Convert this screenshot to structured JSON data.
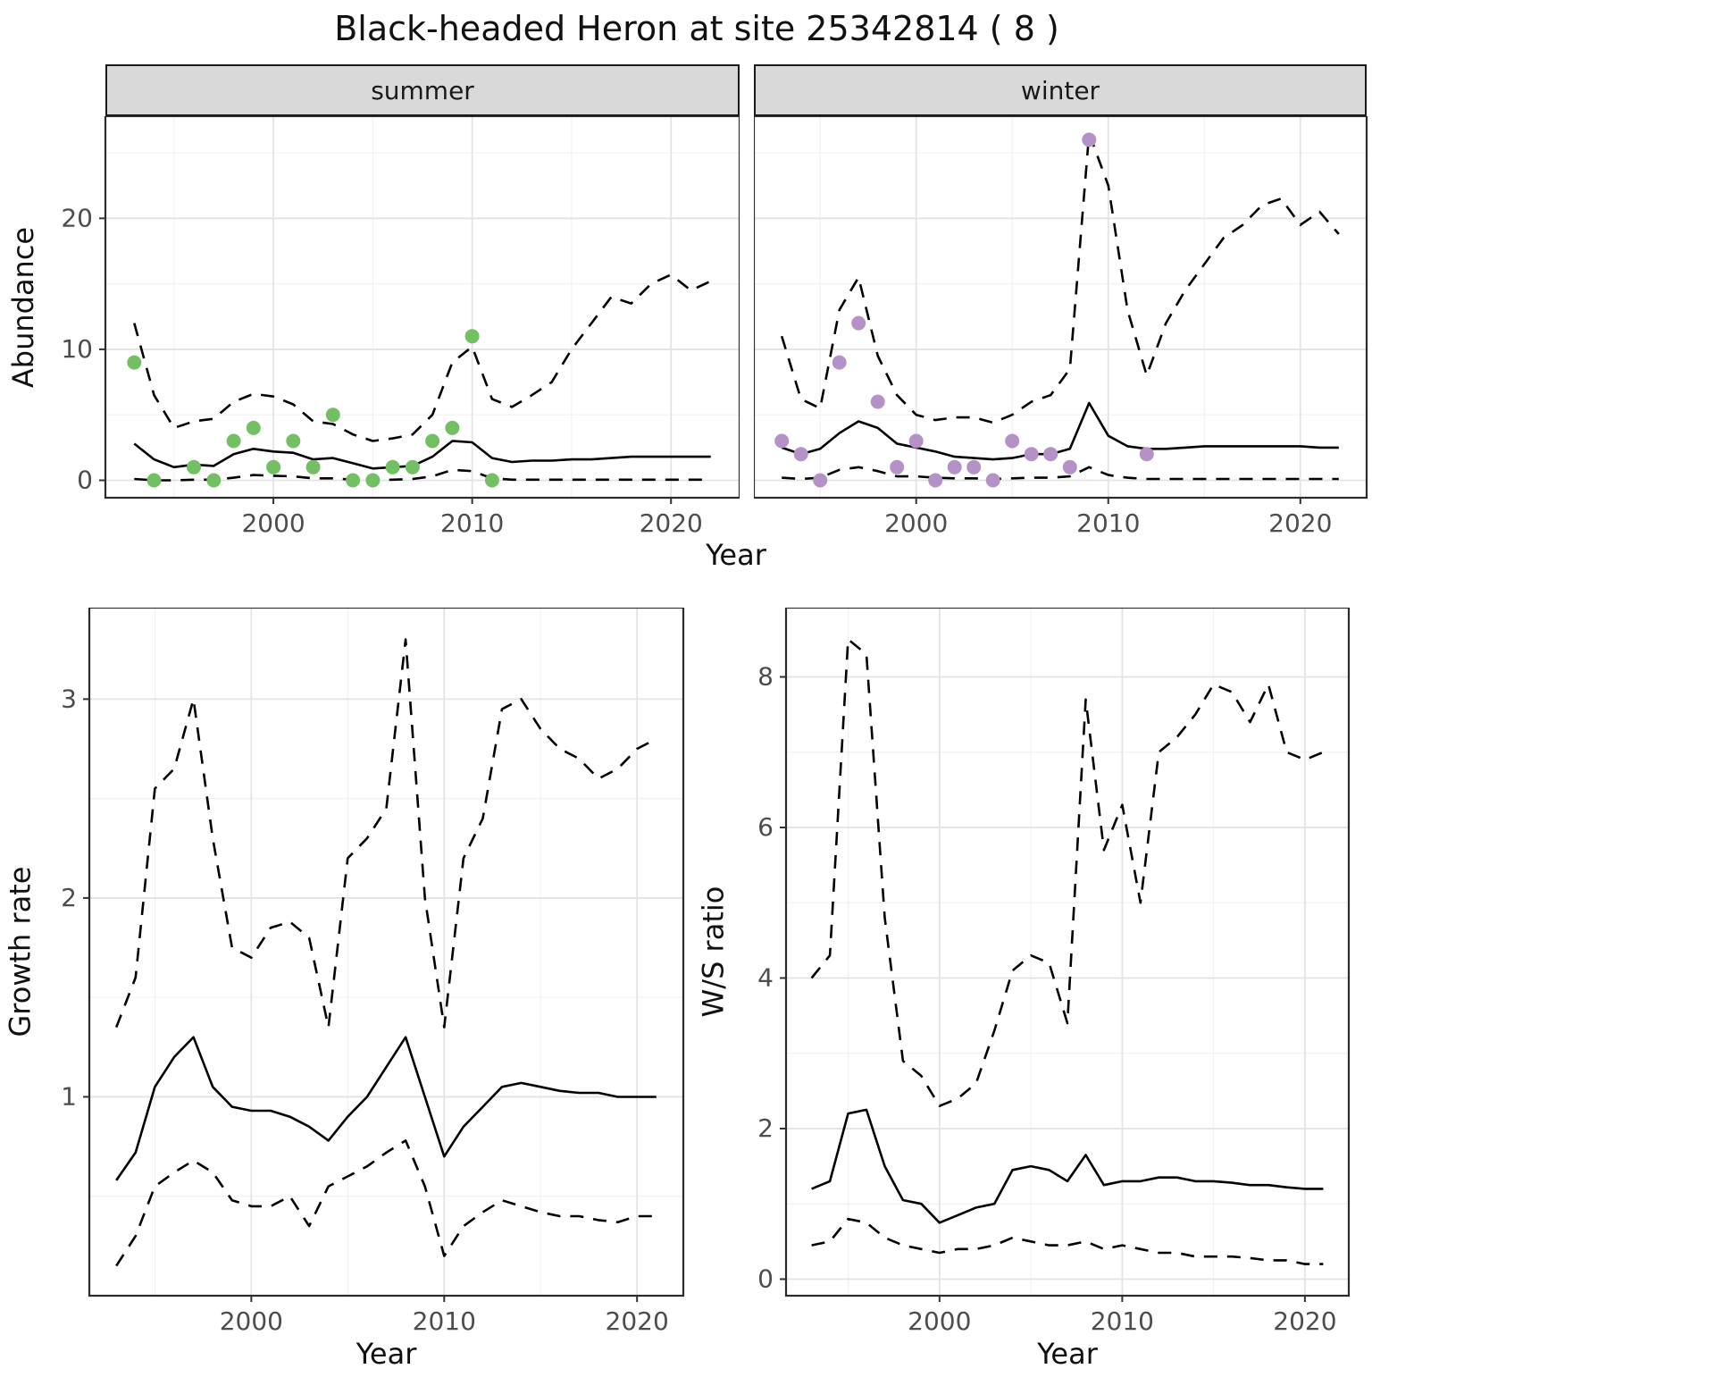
{
  "title": "Black-headed Heron at site 25342814 ( 8 )",
  "top": {
    "x_label": "Year",
    "y_label": "Abundance",
    "facets": [
      "summer",
      "winter"
    ]
  },
  "bottom_left": {
    "x_label": "Year",
    "y_label": "Growth rate"
  },
  "bottom_right": {
    "x_label": "Year",
    "y_label": "W/S ratio"
  },
  "colors": {
    "summer_point": "#73bf63",
    "winter_point": "#b492c8",
    "line": "#000000",
    "panel_background": "#ffffff",
    "grid_major": "#e3e3e3",
    "grid_minor": "#f1f1f1",
    "panel_border": "#2b2b2b",
    "strip_background": "#d9d9d9",
    "tick_label": "#4d4d4d",
    "tick_mark": "#333333"
  },
  "chart_data": [
    {
      "id": "abundance-summer",
      "name": "Abundance (summer facet)",
      "type": "line",
      "xlabel": "Year",
      "ylabel": "Abundance",
      "xlim": [
        1991.55,
        2023.45
      ],
      "ylim": [
        -1.33,
        27.8
      ],
      "xticks": [
        2000,
        2010,
        2020
      ],
      "yticks": [
        0,
        10,
        20
      ],
      "show_y_axis": true,
      "x": [
        1993,
        1994,
        1995,
        1996,
        1997,
        1998,
        1999,
        2000,
        2001,
        2002,
        2003,
        2004,
        2005,
        2006,
        2007,
        2008,
        2009,
        2010,
        2011,
        2012,
        2013,
        2014,
        2015,
        2016,
        2017,
        2018,
        2019,
        2020,
        2021,
        2022
      ],
      "series": [
        {
          "name": "median",
          "style": "solid",
          "values": [
            2.8,
            1.6,
            1.0,
            1.2,
            1.1,
            2.0,
            2.4,
            2.2,
            2.1,
            1.6,
            1.7,
            1.3,
            0.9,
            1.0,
            1.1,
            1.8,
            3.0,
            2.9,
            1.7,
            1.4,
            1.5,
            1.5,
            1.6,
            1.6,
            1.7,
            1.8,
            1.8,
            1.8,
            1.8,
            1.8
          ]
        },
        {
          "name": "upper",
          "style": "dashed",
          "values": [
            12,
            6.5,
            4.0,
            4.5,
            4.7,
            6.0,
            6.6,
            6.4,
            5.8,
            4.5,
            4.3,
            3.5,
            3.0,
            3.2,
            3.5,
            5.0,
            9.0,
            10.2,
            6.2,
            5.6,
            6.5,
            7.5,
            10.0,
            12.0,
            14.0,
            13.5,
            15.0,
            15.7,
            14.5,
            15.2
          ]
        },
        {
          "name": "lower",
          "style": "dashed",
          "values": [
            0.1,
            0.0,
            0.0,
            0.05,
            0.05,
            0.2,
            0.4,
            0.35,
            0.3,
            0.15,
            0.15,
            0.05,
            0.0,
            0.05,
            0.1,
            0.3,
            0.8,
            0.7,
            0.15,
            0.05,
            0.05,
            0.05,
            0.05,
            0.05,
            0.05,
            0.05,
            0.05,
            0.05,
            0.05,
            0.05
          ]
        }
      ],
      "points": {
        "color": "#73bf63",
        "x": [
          1993,
          1994,
          1996,
          1997,
          1998,
          1999,
          2000,
          2001,
          2002,
          2003,
          2004,
          2005,
          2006,
          2007,
          2008,
          2009,
          2010,
          2011
        ],
        "y": [
          9,
          0,
          1,
          0,
          3,
          4,
          1,
          3,
          1,
          5,
          0,
          0,
          1,
          1,
          3,
          4,
          11,
          0
        ]
      }
    },
    {
      "id": "abundance-winter",
      "name": "Abundance (winter facet)",
      "type": "line",
      "xlabel": "Year",
      "ylabel": "Abundance",
      "xlim": [
        1991.55,
        2023.45
      ],
      "ylim": [
        -1.33,
        27.8
      ],
      "xticks": [
        2000,
        2010,
        2020
      ],
      "yticks": [
        0,
        10,
        20
      ],
      "show_y_axis": false,
      "x": [
        1993,
        1994,
        1995,
        1996,
        1997,
        1998,
        1999,
        2000,
        2001,
        2002,
        2003,
        2004,
        2005,
        2006,
        2007,
        2008,
        2009,
        2010,
        2011,
        2012,
        2013,
        2014,
        2015,
        2016,
        2017,
        2018,
        2019,
        2020,
        2021,
        2022
      ],
      "series": [
        {
          "name": "median",
          "style": "solid",
          "values": [
            2.5,
            2.0,
            2.4,
            3.6,
            4.5,
            4.0,
            2.8,
            2.5,
            2.2,
            1.8,
            1.7,
            1.6,
            1.7,
            2.0,
            2.0,
            2.4,
            5.9,
            3.4,
            2.6,
            2.4,
            2.4,
            2.5,
            2.6,
            2.6,
            2.6,
            2.6,
            2.6,
            2.6,
            2.5,
            2.5
          ]
        },
        {
          "name": "upper",
          "style": "dashed",
          "values": [
            11,
            6.2,
            5.5,
            13,
            15.5,
            9.5,
            6.5,
            5.0,
            4.6,
            4.8,
            4.8,
            4.4,
            5.0,
            6.0,
            6.5,
            8.5,
            26.5,
            22.5,
            13,
            8.0,
            12,
            14.5,
            16.5,
            18.5,
            19.5,
            21,
            21.5,
            19.5,
            20.5,
            18.8
          ]
        },
        {
          "name": "lower",
          "style": "dashed",
          "values": [
            0.2,
            0.1,
            0.2,
            0.8,
            1.0,
            0.7,
            0.3,
            0.3,
            0.2,
            0.15,
            0.15,
            0.1,
            0.15,
            0.2,
            0.2,
            0.3,
            1.0,
            0.4,
            0.2,
            0.1,
            0.1,
            0.1,
            0.1,
            0.1,
            0.1,
            0.1,
            0.1,
            0.1,
            0.1,
            0.1
          ]
        }
      ],
      "points": {
        "color": "#b492c8",
        "x": [
          1993,
          1994,
          1995,
          1996,
          1997,
          1998,
          1999,
          2000,
          2001,
          2002,
          2003,
          2004,
          2005,
          2006,
          2007,
          2008,
          2009,
          2012
        ],
        "y": [
          3,
          2,
          0,
          9,
          12,
          6,
          1,
          3,
          0,
          1,
          1,
          0,
          3,
          2,
          2,
          1,
          26,
          2
        ]
      }
    },
    {
      "id": "growth-rate",
      "name": "Growth rate",
      "type": "line",
      "xlabel": "Year",
      "ylabel": "Growth rate",
      "xlim": [
        1991.6,
        2022.4
      ],
      "ylim": [
        0.0,
        3.46
      ],
      "xticks": [
        2000,
        2010,
        2020
      ],
      "yticks": [
        1,
        2,
        3
      ],
      "show_y_axis": true,
      "x": [
        1993,
        1994,
        1995,
        1996,
        1997,
        1998,
        1999,
        2000,
        2001,
        2002,
        2003,
        2004,
        2005,
        2006,
        2007,
        2008,
        2009,
        2010,
        2011,
        2012,
        2013,
        2014,
        2015,
        2016,
        2017,
        2018,
        2019,
        2020,
        2021
      ],
      "series": [
        {
          "name": "median",
          "style": "solid",
          "values": [
            0.58,
            0.72,
            1.05,
            1.2,
            1.3,
            1.05,
            0.95,
            0.93,
            0.93,
            0.9,
            0.85,
            0.78,
            0.9,
            1.0,
            1.15,
            1.3,
            1.0,
            0.7,
            0.85,
            0.95,
            1.05,
            1.07,
            1.05,
            1.03,
            1.02,
            1.02,
            1.0,
            1.0,
            1.0
          ]
        },
        {
          "name": "upper",
          "style": "dashed",
          "values": [
            1.35,
            1.6,
            2.55,
            2.65,
            3.0,
            2.3,
            1.75,
            1.7,
            1.85,
            1.88,
            1.8,
            1.35,
            2.2,
            2.3,
            2.45,
            3.3,
            2.0,
            1.35,
            2.2,
            2.4,
            2.95,
            3.0,
            2.85,
            2.75,
            2.7,
            2.6,
            2.65,
            2.75,
            2.8
          ]
        },
        {
          "name": "lower",
          "style": "dashed",
          "values": [
            0.15,
            0.3,
            0.55,
            0.62,
            0.68,
            0.62,
            0.48,
            0.45,
            0.45,
            0.5,
            0.35,
            0.55,
            0.6,
            0.65,
            0.72,
            0.78,
            0.55,
            0.2,
            0.35,
            0.42,
            0.48,
            0.45,
            0.42,
            0.4,
            0.4,
            0.38,
            0.37,
            0.4,
            0.4
          ]
        }
      ],
      "points": null
    },
    {
      "id": "ws-ratio",
      "name": "W/S ratio",
      "type": "line",
      "xlabel": "Year",
      "ylabel": "W/S ratio",
      "xlim": [
        1991.6,
        2022.4
      ],
      "ylim": [
        -0.22,
        8.92
      ],
      "xticks": [
        2000,
        2010,
        2020
      ],
      "yticks": [
        0,
        2,
        4,
        6,
        8
      ],
      "show_y_axis": true,
      "x": [
        1993,
        1994,
        1995,
        1996,
        1997,
        1998,
        1999,
        2000,
        2001,
        2002,
        2003,
        2004,
        2005,
        2006,
        2007,
        2008,
        2009,
        2010,
        2011,
        2012,
        2013,
        2014,
        2015,
        2016,
        2017,
        2018,
        2019,
        2020,
        2021
      ],
      "series": [
        {
          "name": "median",
          "style": "solid",
          "values": [
            1.2,
            1.3,
            2.2,
            2.25,
            1.5,
            1.05,
            1.0,
            0.75,
            0.85,
            0.95,
            1.0,
            1.45,
            1.5,
            1.45,
            1.3,
            1.65,
            1.25,
            1.3,
            1.3,
            1.35,
            1.35,
            1.3,
            1.3,
            1.28,
            1.25,
            1.25,
            1.22,
            1.2,
            1.2
          ]
        },
        {
          "name": "upper",
          "style": "dashed",
          "values": [
            4.0,
            4.3,
            8.5,
            8.3,
            4.8,
            2.9,
            2.7,
            2.3,
            2.4,
            2.6,
            3.3,
            4.1,
            4.3,
            4.2,
            3.4,
            7.7,
            5.7,
            6.3,
            5.0,
            7.0,
            7.2,
            7.5,
            7.9,
            7.8,
            7.4,
            7.9,
            7.0,
            6.9,
            7.0
          ]
        },
        {
          "name": "lower",
          "style": "dashed",
          "values": [
            0.45,
            0.5,
            0.8,
            0.75,
            0.55,
            0.45,
            0.4,
            0.35,
            0.4,
            0.4,
            0.45,
            0.55,
            0.5,
            0.45,
            0.45,
            0.5,
            0.4,
            0.45,
            0.4,
            0.35,
            0.35,
            0.3,
            0.3,
            0.3,
            0.28,
            0.25,
            0.25,
            0.2,
            0.2
          ]
        }
      ],
      "points": null
    }
  ]
}
